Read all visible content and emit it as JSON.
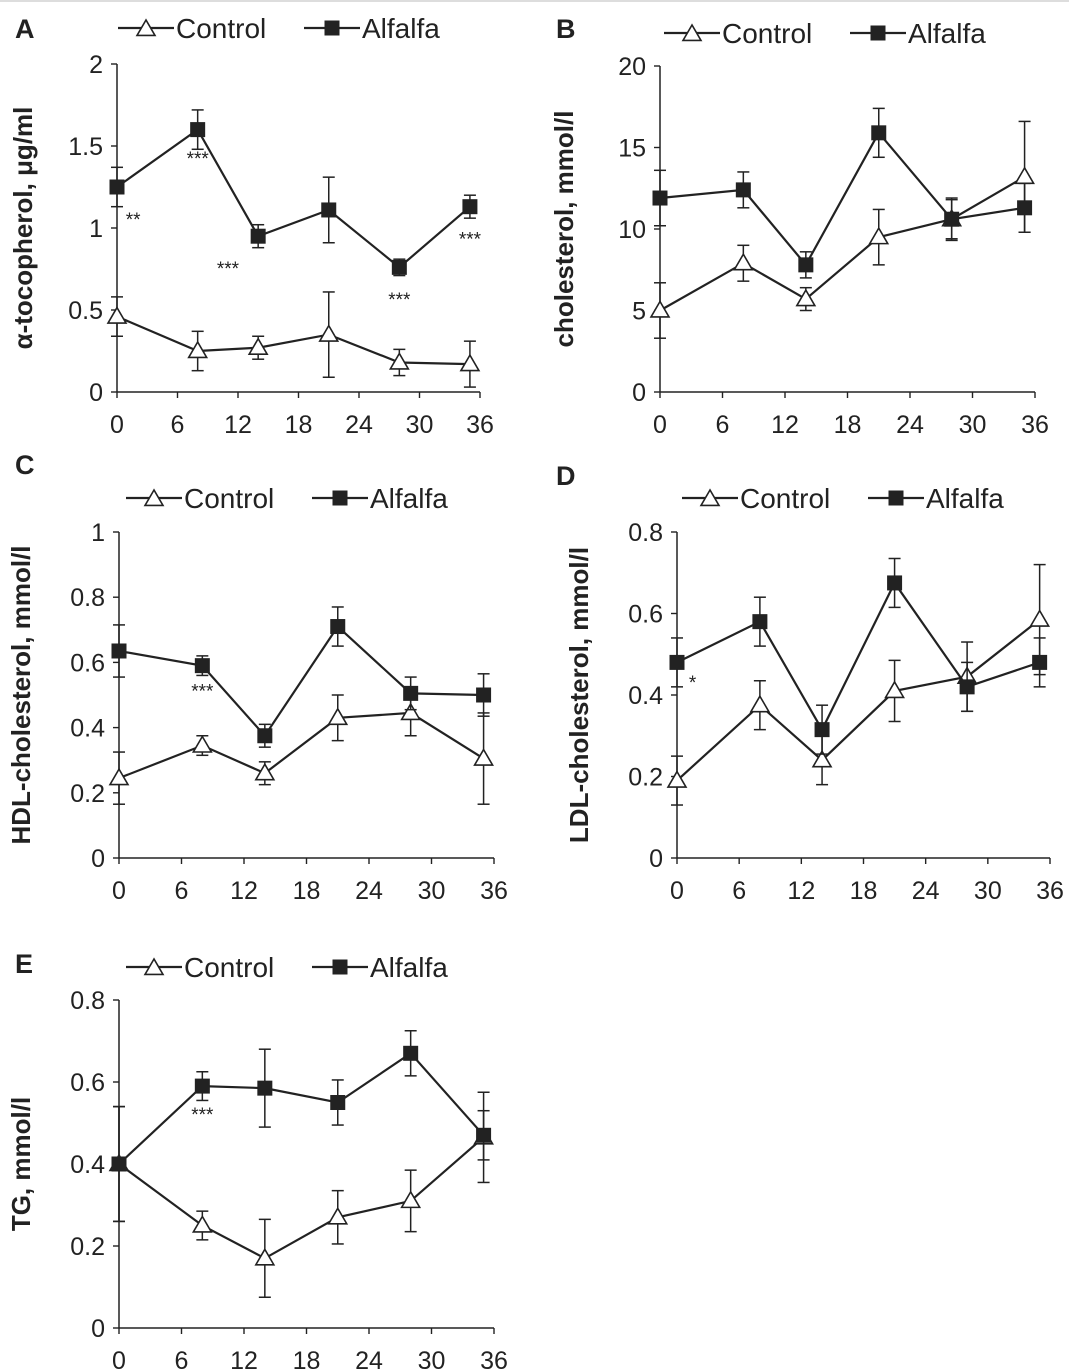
{
  "chart_data": [
    {
      "panel": "A",
      "type": "line",
      "ylabel": "α-tocopherol, μg/ml",
      "xlabel": "",
      "ylim": [
        0,
        2
      ],
      "yticks": [
        "0",
        "0.5",
        "1",
        "1.5",
        "2"
      ],
      "xlim": [
        0,
        36
      ],
      "xticks": [
        "0",
        "6",
        "12",
        "18",
        "24",
        "30",
        "36"
      ],
      "legend": "top",
      "series": [
        {
          "name": "Control",
          "marker": "open-triangle",
          "x": [
            0,
            8,
            14,
            21,
            28,
            35
          ],
          "y": [
            0.46,
            0.25,
            0.27,
            0.35,
            0.18,
            0.17
          ],
          "err": [
            0.12,
            0.12,
            0.07,
            0.26,
            0.08,
            0.14
          ]
        },
        {
          "name": "Alfalfa",
          "marker": "filled-square",
          "x": [
            0,
            8,
            14,
            21,
            28,
            35
          ],
          "y": [
            1.25,
            1.6,
            0.95,
            1.11,
            0.76,
            1.13
          ],
          "err": [
            0.12,
            0.12,
            0.07,
            0.2,
            0.05,
            0.07
          ]
        }
      ],
      "annotations": [
        {
          "text": "**",
          "x": 1.6,
          "y": 1.05
        },
        {
          "text": "***",
          "x": 8,
          "y": 1.42
        },
        {
          "text": "***",
          "x": 11,
          "y": 0.75
        },
        {
          "text": "***",
          "x": 28,
          "y": 0.56
        },
        {
          "text": "***",
          "x": 35,
          "y": 0.93
        }
      ]
    },
    {
      "panel": "B",
      "type": "line",
      "ylabel": "cholesterol, mmol/l",
      "xlabel": "",
      "ylim": [
        0,
        20
      ],
      "yticks": [
        "0",
        "5",
        "10",
        "15",
        "20"
      ],
      "xlim": [
        0,
        36
      ],
      "xticks": [
        "0",
        "6",
        "12",
        "18",
        "24",
        "30",
        "36"
      ],
      "legend": "top",
      "series": [
        {
          "name": "Control",
          "marker": "open-triangle",
          "x": [
            0,
            8,
            14,
            21,
            28,
            35
          ],
          "y": [
            5.0,
            7.9,
            5.7,
            9.5,
            10.6,
            13.2
          ],
          "err": [
            1.7,
            1.1,
            0.7,
            1.7,
            1.2,
            3.4
          ]
        },
        {
          "name": "Alfalfa",
          "marker": "filled-square",
          "x": [
            0,
            8,
            14,
            21,
            28,
            35
          ],
          "y": [
            11.9,
            12.4,
            7.8,
            15.9,
            10.6,
            11.3
          ],
          "err": [
            1.7,
            1.1,
            0.8,
            1.5,
            1.3,
            1.5
          ]
        }
      ],
      "annotations": []
    },
    {
      "panel": "C",
      "type": "line",
      "ylabel": "HDL-cholesterol, mmol/l",
      "xlabel": "",
      "ylim": [
        0,
        1
      ],
      "yticks": [
        "0",
        "0.2",
        "0.4",
        "0.6",
        "0.8",
        "1"
      ],
      "xlim": [
        0,
        36
      ],
      "xticks": [
        "0",
        "6",
        "12",
        "18",
        "24",
        "30",
        "36"
      ],
      "legend": "top",
      "series": [
        {
          "name": "Control",
          "marker": "open-triangle",
          "x": [
            0,
            8,
            14,
            21,
            28,
            35
          ],
          "y": [
            0.245,
            0.345,
            0.26,
            0.43,
            0.445,
            0.305
          ],
          "err": [
            0.08,
            0.03,
            0.035,
            0.07,
            0.07,
            0.14
          ]
        },
        {
          "name": "Alfalfa",
          "marker": "filled-square",
          "x": [
            0,
            8,
            14,
            21,
            28,
            35
          ],
          "y": [
            0.635,
            0.59,
            0.375,
            0.71,
            0.505,
            0.5
          ],
          "err": [
            0.08,
            0.03,
            0.035,
            0.06,
            0.05,
            0.065
          ]
        }
      ],
      "annotations": [
        {
          "text": "***",
          "x": 8,
          "y": 0.51
        }
      ]
    },
    {
      "panel": "D",
      "type": "line",
      "ylabel": "LDL-cholesterol, mmol/l",
      "xlabel": "",
      "ylim": [
        0,
        0.8
      ],
      "yticks": [
        "0",
        "0.2",
        "0.4",
        "0.6",
        "0.8"
      ],
      "xlim": [
        0,
        36
      ],
      "xticks": [
        "0",
        "6",
        "12",
        "18",
        "24",
        "30",
        "36"
      ],
      "legend": "top",
      "series": [
        {
          "name": "Control",
          "marker": "open-triangle",
          "x": [
            0,
            8,
            14,
            21,
            28,
            35
          ],
          "y": [
            0.19,
            0.375,
            0.24,
            0.41,
            0.445,
            0.585
          ],
          "err": [
            0.06,
            0.06,
            0.06,
            0.075,
            0.085,
            0.135
          ]
        },
        {
          "name": "Alfalfa",
          "marker": "filled-square",
          "x": [
            0,
            8,
            14,
            21,
            28,
            35
          ],
          "y": [
            0.48,
            0.58,
            0.315,
            0.675,
            0.42,
            0.48
          ],
          "err": [
            0.06,
            0.06,
            0.06,
            0.06,
            0.06,
            0.06
          ]
        }
      ],
      "annotations": [
        {
          "text": "*",
          "x": 1.5,
          "y": 0.43
        }
      ]
    },
    {
      "panel": "E",
      "type": "line",
      "ylabel": "TG, mmol/l",
      "xlabel": "",
      "ylim": [
        0,
        0.8
      ],
      "yticks": [
        "0",
        "0.2",
        "0.4",
        "0.6",
        "0.8"
      ],
      "xlim": [
        0,
        36
      ],
      "xticks": [
        "0",
        "6",
        "12",
        "18",
        "24",
        "30",
        "36"
      ],
      "legend": "top",
      "series": [
        {
          "name": "Control",
          "marker": "open-triangle",
          "x": [
            0,
            8,
            14,
            21,
            28,
            35
          ],
          "y": [
            0.4,
            0.25,
            0.17,
            0.27,
            0.31,
            0.465
          ],
          "err": [
            0.14,
            0.035,
            0.095,
            0.065,
            0.075,
            0.11
          ]
        },
        {
          "name": "Alfalfa",
          "marker": "filled-square",
          "x": [
            0,
            8,
            14,
            21,
            28,
            35
          ],
          "y": [
            0.4,
            0.59,
            0.585,
            0.55,
            0.67,
            0.47
          ],
          "err": [
            0.14,
            0.035,
            0.095,
            0.055,
            0.055,
            0.06
          ]
        }
      ],
      "annotations": [
        {
          "text": "***",
          "x": 8,
          "y": 0.52
        }
      ]
    }
  ]
}
